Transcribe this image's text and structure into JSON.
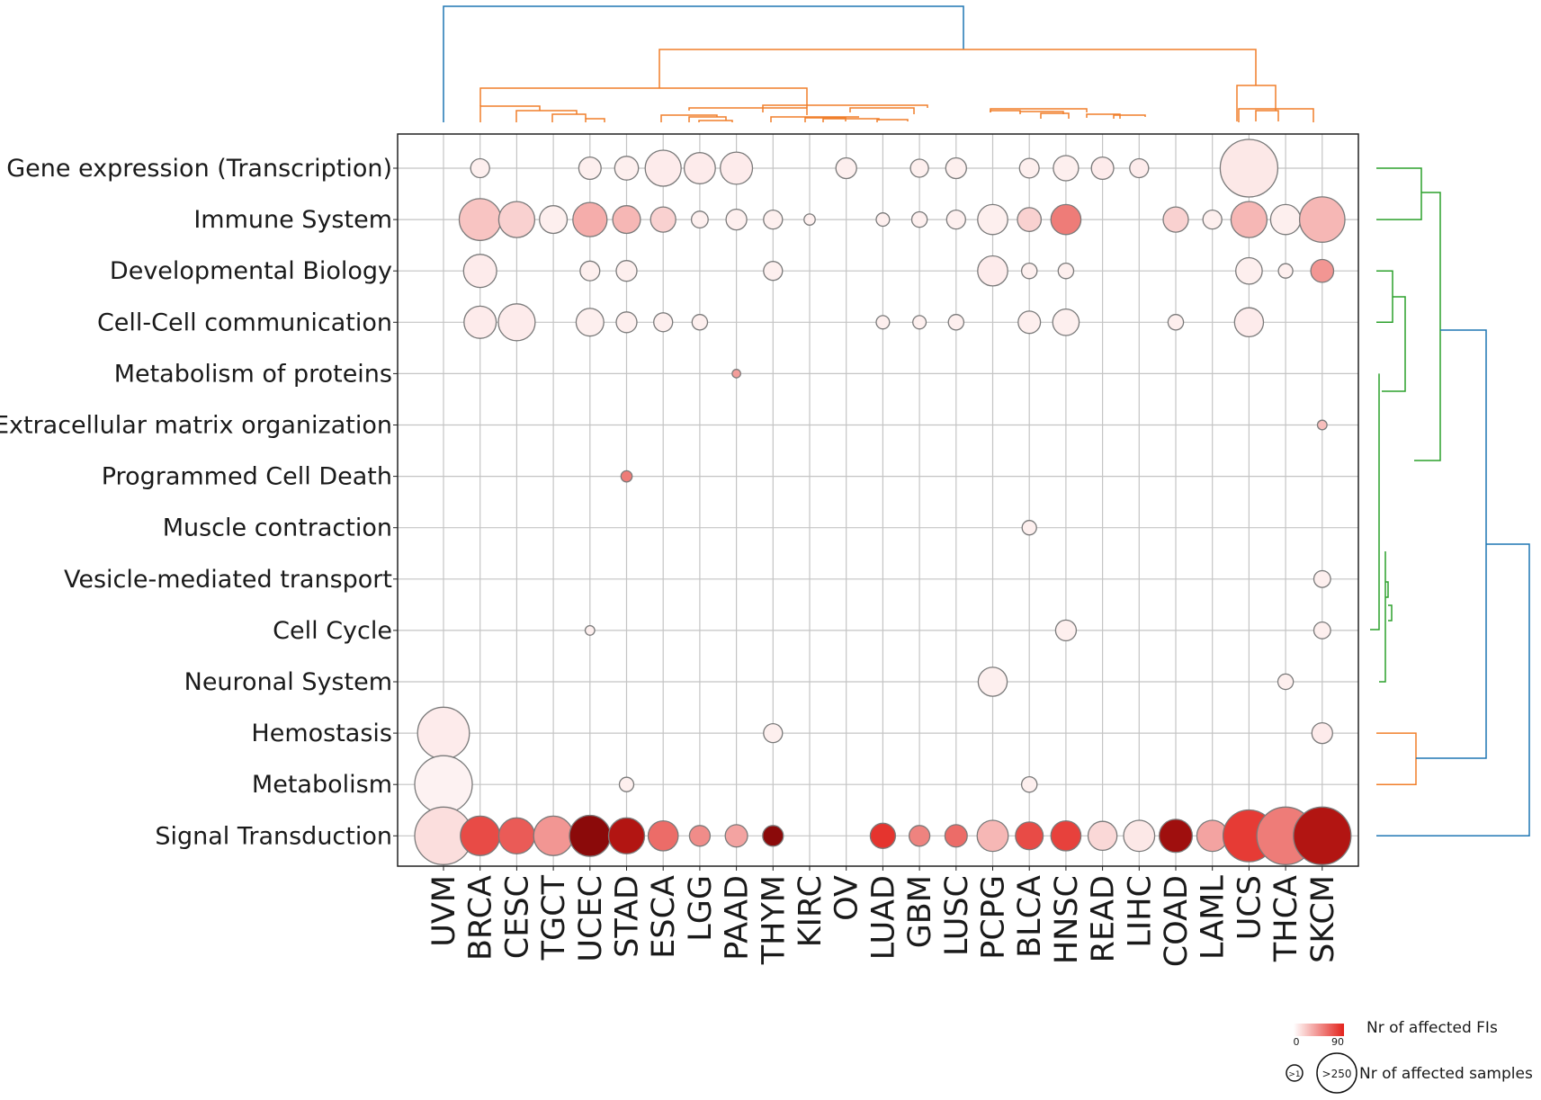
{
  "chart_data": {
    "type": "scatter",
    "subtype": "bubble-heatmap with dendrograms",
    "x_categories": [
      "UVM",
      "BRCA",
      "CESC",
      "TGCT",
      "UCEC",
      "STAD",
      "ESCA",
      "LGG",
      "PAAD",
      "THYM",
      "KIRC",
      "OV",
      "LUAD",
      "GBM",
      "LUSC",
      "PCPG",
      "BLCA",
      "HNSC",
      "READ",
      "LIHC",
      "COAD",
      "LAML",
      "UCS",
      "THCA",
      "SKCM"
    ],
    "y_categories": [
      "Gene expression (Transcription)",
      "Immune System",
      "Developmental Biology",
      "Cell-Cell communication",
      "Metabolism of proteins",
      "Extracellular matrix organization",
      "Programmed Cell Death",
      "Muscle contraction",
      "Vesicle-mediated transport",
      "Cell Cycle",
      "Neuronal System",
      "Hemostasis",
      "Metabolism",
      "Signal Transduction"
    ],
    "points": [
      {
        "x": "BRCA",
        "y": "Gene expression (Transcription)",
        "samples": 20,
        "fis": 5
      },
      {
        "x": "UCEC",
        "y": "Gene expression (Transcription)",
        "samples": 30,
        "fis": 5
      },
      {
        "x": "STAD",
        "y": "Gene expression (Transcription)",
        "samples": 35,
        "fis": 5
      },
      {
        "x": "ESCA",
        "y": "Gene expression (Transcription)",
        "samples": 90,
        "fis": 6
      },
      {
        "x": "LGG",
        "y": "Gene expression (Transcription)",
        "samples": 65,
        "fis": 6
      },
      {
        "x": "PAAD",
        "y": "Gene expression (Transcription)",
        "samples": 70,
        "fis": 6
      },
      {
        "x": "OV",
        "y": "Gene expression (Transcription)",
        "samples": 25,
        "fis": 5
      },
      {
        "x": "GBM",
        "y": "Gene expression (Transcription)",
        "samples": 18,
        "fis": 5
      },
      {
        "x": "LUSC",
        "y": "Gene expression (Transcription)",
        "samples": 25,
        "fis": 5
      },
      {
        "x": "BLCA",
        "y": "Gene expression (Transcription)",
        "samples": 22,
        "fis": 5
      },
      {
        "x": "HNSC",
        "y": "Gene expression (Transcription)",
        "samples": 40,
        "fis": 5
      },
      {
        "x": "READ",
        "y": "Gene expression (Transcription)",
        "samples": 30,
        "fis": 6
      },
      {
        "x": "LIHC",
        "y": "Gene expression (Transcription)",
        "samples": 20,
        "fis": 6
      },
      {
        "x": "UCS",
        "y": "Gene expression (Transcription)",
        "samples": 250,
        "fis": 7
      },
      {
        "x": "BRCA",
        "y": "Immune System",
        "samples": 125,
        "fis": 18
      },
      {
        "x": "CESC",
        "y": "Immune System",
        "samples": 90,
        "fis": 14
      },
      {
        "x": "TGCT",
        "y": "Immune System",
        "samples": 50,
        "fis": 5
      },
      {
        "x": "UCEC",
        "y": "Immune System",
        "samples": 80,
        "fis": 25
      },
      {
        "x": "STAD",
        "y": "Immune System",
        "samples": 50,
        "fis": 22
      },
      {
        "x": "ESCA",
        "y": "Immune System",
        "samples": 40,
        "fis": 14
      },
      {
        "x": "LGG",
        "y": "Immune System",
        "samples": 15,
        "fis": 5
      },
      {
        "x": "PAAD",
        "y": "Immune System",
        "samples": 25,
        "fis": 5
      },
      {
        "x": "THYM",
        "y": "Immune System",
        "samples": 20,
        "fis": 5
      },
      {
        "x": "KIRC",
        "y": "Immune System",
        "samples": 5,
        "fis": 5
      },
      {
        "x": "LUAD",
        "y": "Immune System",
        "samples": 8,
        "fis": 5
      },
      {
        "x": "GBM",
        "y": "Immune System",
        "samples": 12,
        "fis": 5
      },
      {
        "x": "LUSC",
        "y": "Immune System",
        "samples": 20,
        "fis": 5
      },
      {
        "x": "PCPG",
        "y": "Immune System",
        "samples": 60,
        "fis": 5
      },
      {
        "x": "BLCA",
        "y": "Immune System",
        "samples": 35,
        "fis": 14
      },
      {
        "x": "HNSC",
        "y": "Immune System",
        "samples": 60,
        "fis": 40
      },
      {
        "x": "COAD",
        "y": "Immune System",
        "samples": 40,
        "fis": 14
      },
      {
        "x": "LAML",
        "y": "Immune System",
        "samples": 20,
        "fis": 5
      },
      {
        "x": "UCS",
        "y": "Immune System",
        "samples": 90,
        "fis": 22
      },
      {
        "x": "THCA",
        "y": "Immune System",
        "samples": 60,
        "fis": 5
      },
      {
        "x": "SKCM",
        "y": "Immune System",
        "samples": 150,
        "fis": 22
      },
      {
        "x": "BRCA",
        "y": "Developmental Biology",
        "samples": 75,
        "fis": 6
      },
      {
        "x": "UCEC",
        "y": "Developmental Biology",
        "samples": 22,
        "fis": 5
      },
      {
        "x": "STAD",
        "y": "Developmental Biology",
        "samples": 25,
        "fis": 5
      },
      {
        "x": "THYM",
        "y": "Developmental Biology",
        "samples": 20,
        "fis": 5
      },
      {
        "x": "PCPG",
        "y": "Developmental Biology",
        "samples": 60,
        "fis": 6
      },
      {
        "x": "BLCA",
        "y": "Developmental Biology",
        "samples": 12,
        "fis": 5
      },
      {
        "x": "HNSC",
        "y": "Developmental Biology",
        "samples": 12,
        "fis": 5
      },
      {
        "x": "UCS",
        "y": "Developmental Biology",
        "samples": 45,
        "fis": 5
      },
      {
        "x": "THCA",
        "y": "Developmental Biology",
        "samples": 10,
        "fis": 5
      },
      {
        "x": "SKCM",
        "y": "Developmental Biology",
        "samples": 32,
        "fis": 32
      },
      {
        "x": "BRCA",
        "y": "Cell-Cell communication",
        "samples": 70,
        "fis": 6
      },
      {
        "x": "CESC",
        "y": "Cell-Cell communication",
        "samples": 95,
        "fis": 6
      },
      {
        "x": "UCEC",
        "y": "Cell-Cell communication",
        "samples": 50,
        "fis": 5
      },
      {
        "x": "STAD",
        "y": "Cell-Cell communication",
        "samples": 25,
        "fis": 5
      },
      {
        "x": "ESCA",
        "y": "Cell-Cell communication",
        "samples": 20,
        "fis": 5
      },
      {
        "x": "LGG",
        "y": "Cell-Cell communication",
        "samples": 12,
        "fis": 5
      },
      {
        "x": "LUAD",
        "y": "Cell-Cell communication",
        "samples": 8,
        "fis": 5
      },
      {
        "x": "GBM",
        "y": "Cell-Cell communication",
        "samples": 8,
        "fis": 5
      },
      {
        "x": "LUSC",
        "y": "Cell-Cell communication",
        "samples": 12,
        "fis": 5
      },
      {
        "x": "BLCA",
        "y": "Cell-Cell communication",
        "samples": 30,
        "fis": 5
      },
      {
        "x": "HNSC",
        "y": "Cell-Cell communication",
        "samples": 45,
        "fis": 5
      },
      {
        "x": "COAD",
        "y": "Cell-Cell communication",
        "samples": 12,
        "fis": 5
      },
      {
        "x": "UCS",
        "y": "Cell-Cell communication",
        "samples": 55,
        "fis": 6
      },
      {
        "x": "PAAD",
        "y": "Metabolism of proteins",
        "samples": 2,
        "fis": 30
      },
      {
        "x": "SKCM",
        "y": "Extracellular matrix organization",
        "samples": 3,
        "fis": 20
      },
      {
        "x": "STAD",
        "y": "Programmed Cell Death",
        "samples": 5,
        "fis": 40
      },
      {
        "x": "BLCA",
        "y": "Muscle contraction",
        "samples": 10,
        "fis": 5
      },
      {
        "x": "SKCM",
        "y": "Vesicle-mediated transport",
        "samples": 15,
        "fis": 5
      },
      {
        "x": "UCEC",
        "y": "Cell Cycle",
        "samples": 3,
        "fis": 5
      },
      {
        "x": "HNSC",
        "y": "Cell Cycle",
        "samples": 25,
        "fis": 5
      },
      {
        "x": "SKCM",
        "y": "Cell Cycle",
        "samples": 15,
        "fis": 5
      },
      {
        "x": "PCPG",
        "y": "Neuronal System",
        "samples": 55,
        "fis": 5
      },
      {
        "x": "THCA",
        "y": "Neuronal System",
        "samples": 12,
        "fis": 5
      },
      {
        "x": "UVM",
        "y": "Hemostasis",
        "samples": 200,
        "fis": 6
      },
      {
        "x": "THYM",
        "y": "Hemostasis",
        "samples": 20,
        "fis": 5
      },
      {
        "x": "SKCM",
        "y": "Hemostasis",
        "samples": 25,
        "fis": 6
      },
      {
        "x": "UVM",
        "y": "Metabolism",
        "samples": 250,
        "fis": 4
      },
      {
        "x": "STAD",
        "y": "Metabolism",
        "samples": 10,
        "fis": 5
      },
      {
        "x": "BLCA",
        "y": "Metabolism",
        "samples": 12,
        "fis": 5
      },
      {
        "x": "UVM",
        "y": "Signal Transduction",
        "samples": 250,
        "fis": 10
      },
      {
        "x": "BRCA",
        "y": "Signal Transduction",
        "samples": 110,
        "fis": 55
      },
      {
        "x": "CESC",
        "y": "Signal Transduction",
        "samples": 90,
        "fis": 50
      },
      {
        "x": "TGCT",
        "y": "Signal Transduction",
        "samples": 110,
        "fis": 32
      },
      {
        "x": "UCEC",
        "y": "Signal Transduction",
        "samples": 120,
        "fis": 90
      },
      {
        "x": "STAD",
        "y": "Signal Transduction",
        "samples": 90,
        "fis": 80
      },
      {
        "x": "ESCA",
        "y": "Signal Transduction",
        "samples": 60,
        "fis": 45
      },
      {
        "x": "LGG",
        "y": "Signal Transduction",
        "samples": 25,
        "fis": 35
      },
      {
        "x": "PAAD",
        "y": "Signal Transduction",
        "samples": 30,
        "fis": 28
      },
      {
        "x": "THYM",
        "y": "Signal Transduction",
        "samples": 25,
        "fis": 90
      },
      {
        "x": "LUAD",
        "y": "Signal Transduction",
        "samples": 40,
        "fis": 62
      },
      {
        "x": "GBM",
        "y": "Signal Transduction",
        "samples": 25,
        "fis": 38
      },
      {
        "x": "LUSC",
        "y": "Signal Transduction",
        "samples": 30,
        "fis": 45
      },
      {
        "x": "PCPG",
        "y": "Signal Transduction",
        "samples": 65,
        "fis": 22
      },
      {
        "x": "BLCA",
        "y": "Signal Transduction",
        "samples": 50,
        "fis": 55
      },
      {
        "x": "HNSC",
        "y": "Signal Transduction",
        "samples": 60,
        "fis": 58
      },
      {
        "x": "READ",
        "y": "Signal Transduction",
        "samples": 55,
        "fis": 12
      },
      {
        "x": "LIHC",
        "y": "Signal Transduction",
        "samples": 65,
        "fis": 7
      },
      {
        "x": "COAD",
        "y": "Signal Transduction",
        "samples": 75,
        "fis": 85
      },
      {
        "x": "LAML",
        "y": "Signal Transduction",
        "samples": 65,
        "fis": 28
      },
      {
        "x": "UCS",
        "y": "Signal Transduction",
        "samples": 200,
        "fis": 60
      },
      {
        "x": "THCA",
        "y": "Signal Transduction",
        "samples": 250,
        "fis": 40
      },
      {
        "x": "SKCM",
        "y": "Signal Transduction",
        "samples": 250,
        "fis": 80
      }
    ],
    "color_scale": {
      "min": 0,
      "max": 90,
      "low_color": "#ffffff",
      "high_color": "#e3221c",
      "extreme_color": "#8b0a0a"
    },
    "size_scale": {
      "min": 1,
      "max": 250
    },
    "legend": {
      "color_title": "Nr of affected FIs",
      "color_min_label": "0",
      "color_max_label": "90",
      "size_title": "Nr of affected samples",
      "size_min_label": ">1",
      "size_max_label": ">250"
    },
    "grid": true,
    "dendrogram_colors": {
      "top_cluster": "#f07f2a",
      "root": "#1f77b4",
      "right_cluster_a": "#2ca02c",
      "right_cluster_b": "#f07f2a"
    }
  }
}
